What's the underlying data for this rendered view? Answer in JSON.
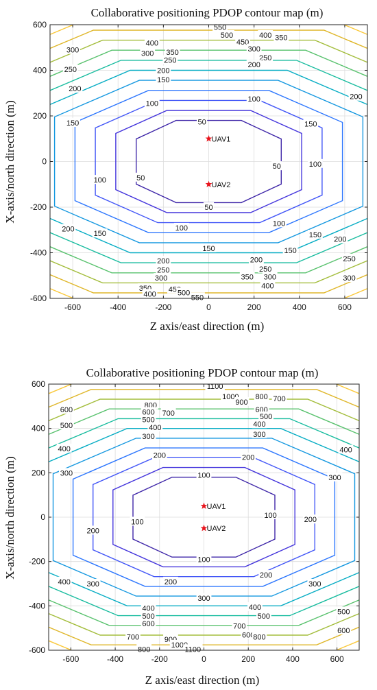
{
  "chart_data": [
    {
      "type": "contour",
      "title": "Collaborative positioning PDOP contour map (m)",
      "xlabel": "Z axis/east direction (m)",
      "ylabel": "X-axis/north direction (m)",
      "xlim": [
        -700,
        700
      ],
      "ylim": [
        -600,
        600
      ],
      "xticks": [
        -600,
        -400,
        -200,
        0,
        200,
        400,
        600
      ],
      "yticks": [
        -600,
        -400,
        -200,
        0,
        200,
        400,
        600
      ],
      "grid": true,
      "levels": [
        50,
        100,
        150,
        200,
        250,
        300,
        350,
        400,
        450,
        500,
        550
      ],
      "markers": [
        {
          "name": "UAV1",
          "x": 0,
          "y": 100,
          "color": "#e8141c"
        },
        {
          "name": "UAV2",
          "x": 0,
          "y": -100,
          "color": "#e8141c"
        }
      ],
      "labels": [
        {
          "text": "550",
          "x": 50,
          "y": 590
        },
        {
          "text": "500",
          "x": 80,
          "y": 555
        },
        {
          "text": "450",
          "x": 150,
          "y": 525
        },
        {
          "text": "400",
          "x": 250,
          "y": 555
        },
        {
          "text": "350",
          "x": 320,
          "y": 545
        },
        {
          "text": "300",
          "x": 200,
          "y": 495
        },
        {
          "text": "250",
          "x": 250,
          "y": 455
        },
        {
          "text": "200",
          "x": 200,
          "y": 425
        },
        {
          "text": "400",
          "x": -250,
          "y": 520
        },
        {
          "text": "350",
          "x": -160,
          "y": 480
        },
        {
          "text": "300",
          "x": -270,
          "y": 475
        },
        {
          "text": "250",
          "x": -170,
          "y": 445
        },
        {
          "text": "200",
          "x": -200,
          "y": 400
        },
        {
          "text": "300",
          "x": -600,
          "y": 490
        },
        {
          "text": "250",
          "x": -610,
          "y": 405
        },
        {
          "text": "200",
          "x": -590,
          "y": 320
        },
        {
          "text": "150",
          "x": -200,
          "y": 360
        },
        {
          "text": "150",
          "x": -600,
          "y": 170
        },
        {
          "text": "100",
          "x": -250,
          "y": 255
        },
        {
          "text": "100",
          "x": 200,
          "y": 275
        },
        {
          "text": "50",
          "x": -30,
          "y": 175
        },
        {
          "text": "50",
          "x": 300,
          "y": -20
        },
        {
          "text": "50",
          "x": -300,
          "y": -70
        },
        {
          "text": "50",
          "x": 0,
          "y": -200
        },
        {
          "text": "100",
          "x": -480,
          "y": -80
        },
        {
          "text": "100",
          "x": 470,
          "y": -10
        },
        {
          "text": "100",
          "x": -120,
          "y": -290
        },
        {
          "text": "100",
          "x": 310,
          "y": -270
        },
        {
          "text": "150",
          "x": 450,
          "y": 165
        },
        {
          "text": "150",
          "x": -480,
          "y": -315
        },
        {
          "text": "150",
          "x": 0,
          "y": -380
        },
        {
          "text": "150",
          "x": 360,
          "y": -390
        },
        {
          "text": "150",
          "x": 470,
          "y": -320
        },
        {
          "text": "200",
          "x": 650,
          "y": 285
        },
        {
          "text": "200",
          "x": -620,
          "y": -295
        },
        {
          "text": "200",
          "x": -200,
          "y": -435
        },
        {
          "text": "200",
          "x": 580,
          "y": -340
        },
        {
          "text": "200",
          "x": 210,
          "y": -430
        },
        {
          "text": "250",
          "x": -200,
          "y": -475
        },
        {
          "text": "250",
          "x": 250,
          "y": -470
        },
        {
          "text": "250",
          "x": 620,
          "y": -425
        },
        {
          "text": "300",
          "x": -210,
          "y": -510
        },
        {
          "text": "300",
          "x": 270,
          "y": -505
        },
        {
          "text": "300",
          "x": 620,
          "y": -510
        },
        {
          "text": "350",
          "x": -280,
          "y": -555
        },
        {
          "text": "350",
          "x": 170,
          "y": -505
        },
        {
          "text": "400",
          "x": -260,
          "y": -580
        },
        {
          "text": "400",
          "x": 260,
          "y": -545
        },
        {
          "text": "450",
          "x": -150,
          "y": -560
        },
        {
          "text": "500",
          "x": -110,
          "y": -575
        },
        {
          "text": "550",
          "x": -50,
          "y": -595
        }
      ]
    },
    {
      "type": "contour",
      "title": "Collaborative positioning PDOP contour map (m)",
      "xlabel": "Z axis/east direction (m)",
      "ylabel": "X-axis/north direction (m)",
      "xlim": [
        -700,
        700
      ],
      "ylim": [
        -600,
        600
      ],
      "xticks": [
        -600,
        -400,
        -200,
        0,
        200,
        400,
        600
      ],
      "yticks": [
        -600,
        -400,
        -200,
        0,
        200,
        400,
        600
      ],
      "grid": true,
      "levels": [
        100,
        200,
        300,
        400,
        500,
        600,
        700,
        800,
        900,
        1000,
        1100
      ],
      "markers": [
        {
          "name": "UAV1",
          "x": 0,
          "y": 50,
          "color": "#e8141c"
        },
        {
          "name": "UAV2",
          "x": 0,
          "y": -50,
          "color": "#e8141c"
        }
      ],
      "labels": [
        {
          "text": "1100",
          "x": 50,
          "y": 590
        },
        {
          "text": "1000",
          "x": 120,
          "y": 545
        },
        {
          "text": "900",
          "x": 170,
          "y": 520
        },
        {
          "text": "800",
          "x": 260,
          "y": 545
        },
        {
          "text": "700",
          "x": 340,
          "y": 535
        },
        {
          "text": "800",
          "x": -240,
          "y": 505
        },
        {
          "text": "700",
          "x": -160,
          "y": 470
        },
        {
          "text": "600",
          "x": -250,
          "y": 475
        },
        {
          "text": "500",
          "x": -250,
          "y": 440
        },
        {
          "text": "400",
          "x": -220,
          "y": 405
        },
        {
          "text": "600",
          "x": 260,
          "y": 485
        },
        {
          "text": "500",
          "x": 280,
          "y": 455
        },
        {
          "text": "400",
          "x": 250,
          "y": 420
        },
        {
          "text": "300",
          "x": 250,
          "y": 375
        },
        {
          "text": "300",
          "x": -250,
          "y": 365
        },
        {
          "text": "600",
          "x": -620,
          "y": 485
        },
        {
          "text": "500",
          "x": -620,
          "y": 415
        },
        {
          "text": "400",
          "x": -630,
          "y": 310
        },
        {
          "text": "400",
          "x": 640,
          "y": 305
        },
        {
          "text": "300",
          "x": -620,
          "y": 200
        },
        {
          "text": "300",
          "x": 590,
          "y": 180
        },
        {
          "text": "200",
          "x": -200,
          "y": 280
        },
        {
          "text": "200",
          "x": 200,
          "y": 270
        },
        {
          "text": "100",
          "x": 0,
          "y": 190
        },
        {
          "text": "100",
          "x": -300,
          "y": -20
        },
        {
          "text": "100",
          "x": 300,
          "y": 10
        },
        {
          "text": "100",
          "x": 0,
          "y": -190
        },
        {
          "text": "200",
          "x": -500,
          "y": -60
        },
        {
          "text": "200",
          "x": 480,
          "y": -10
        },
        {
          "text": "200",
          "x": -150,
          "y": -290
        },
        {
          "text": "200",
          "x": 280,
          "y": -260
        },
        {
          "text": "300",
          "x": -500,
          "y": -300
        },
        {
          "text": "300",
          "x": 0,
          "y": -365
        },
        {
          "text": "300",
          "x": 500,
          "y": -300
        },
        {
          "text": "400",
          "x": -630,
          "y": -290
        },
        {
          "text": "400",
          "x": -250,
          "y": -410
        },
        {
          "text": "400",
          "x": 230,
          "y": -405
        },
        {
          "text": "500",
          "x": -250,
          "y": -445
        },
        {
          "text": "500",
          "x": 270,
          "y": -445
        },
        {
          "text": "500",
          "x": 630,
          "y": -425
        },
        {
          "text": "600",
          "x": -250,
          "y": -480
        },
        {
          "text": "600",
          "x": 630,
          "y": -510
        },
        {
          "text": "600",
          "x": 200,
          "y": -530
        },
        {
          "text": "700",
          "x": -320,
          "y": -540
        },
        {
          "text": "700",
          "x": 160,
          "y": -490
        },
        {
          "text": "800",
          "x": -270,
          "y": -595
        },
        {
          "text": "800",
          "x": 250,
          "y": -540
        },
        {
          "text": "900",
          "x": -150,
          "y": -550
        },
        {
          "text": "1000",
          "x": -110,
          "y": -575
        },
        {
          "text": "1100",
          "x": -50,
          "y": -595
        }
      ]
    }
  ]
}
